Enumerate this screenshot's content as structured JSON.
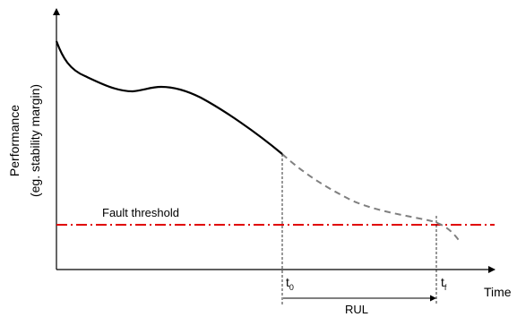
{
  "diagram": {
    "y_axis_label_line1": "Performance",
    "y_axis_label_line2": "(eg. stability margin)",
    "x_axis_label": "Time",
    "threshold_label": "Fault threshold",
    "t0_main": "t",
    "t0_sub": "0",
    "tf_main": "t",
    "tf_sub": "f",
    "rul_label": "RUL",
    "colors": {
      "threshold": "#e00000",
      "measured_curve": "#000000",
      "predicted_curve": "#808080",
      "axes": "#000000"
    }
  }
}
